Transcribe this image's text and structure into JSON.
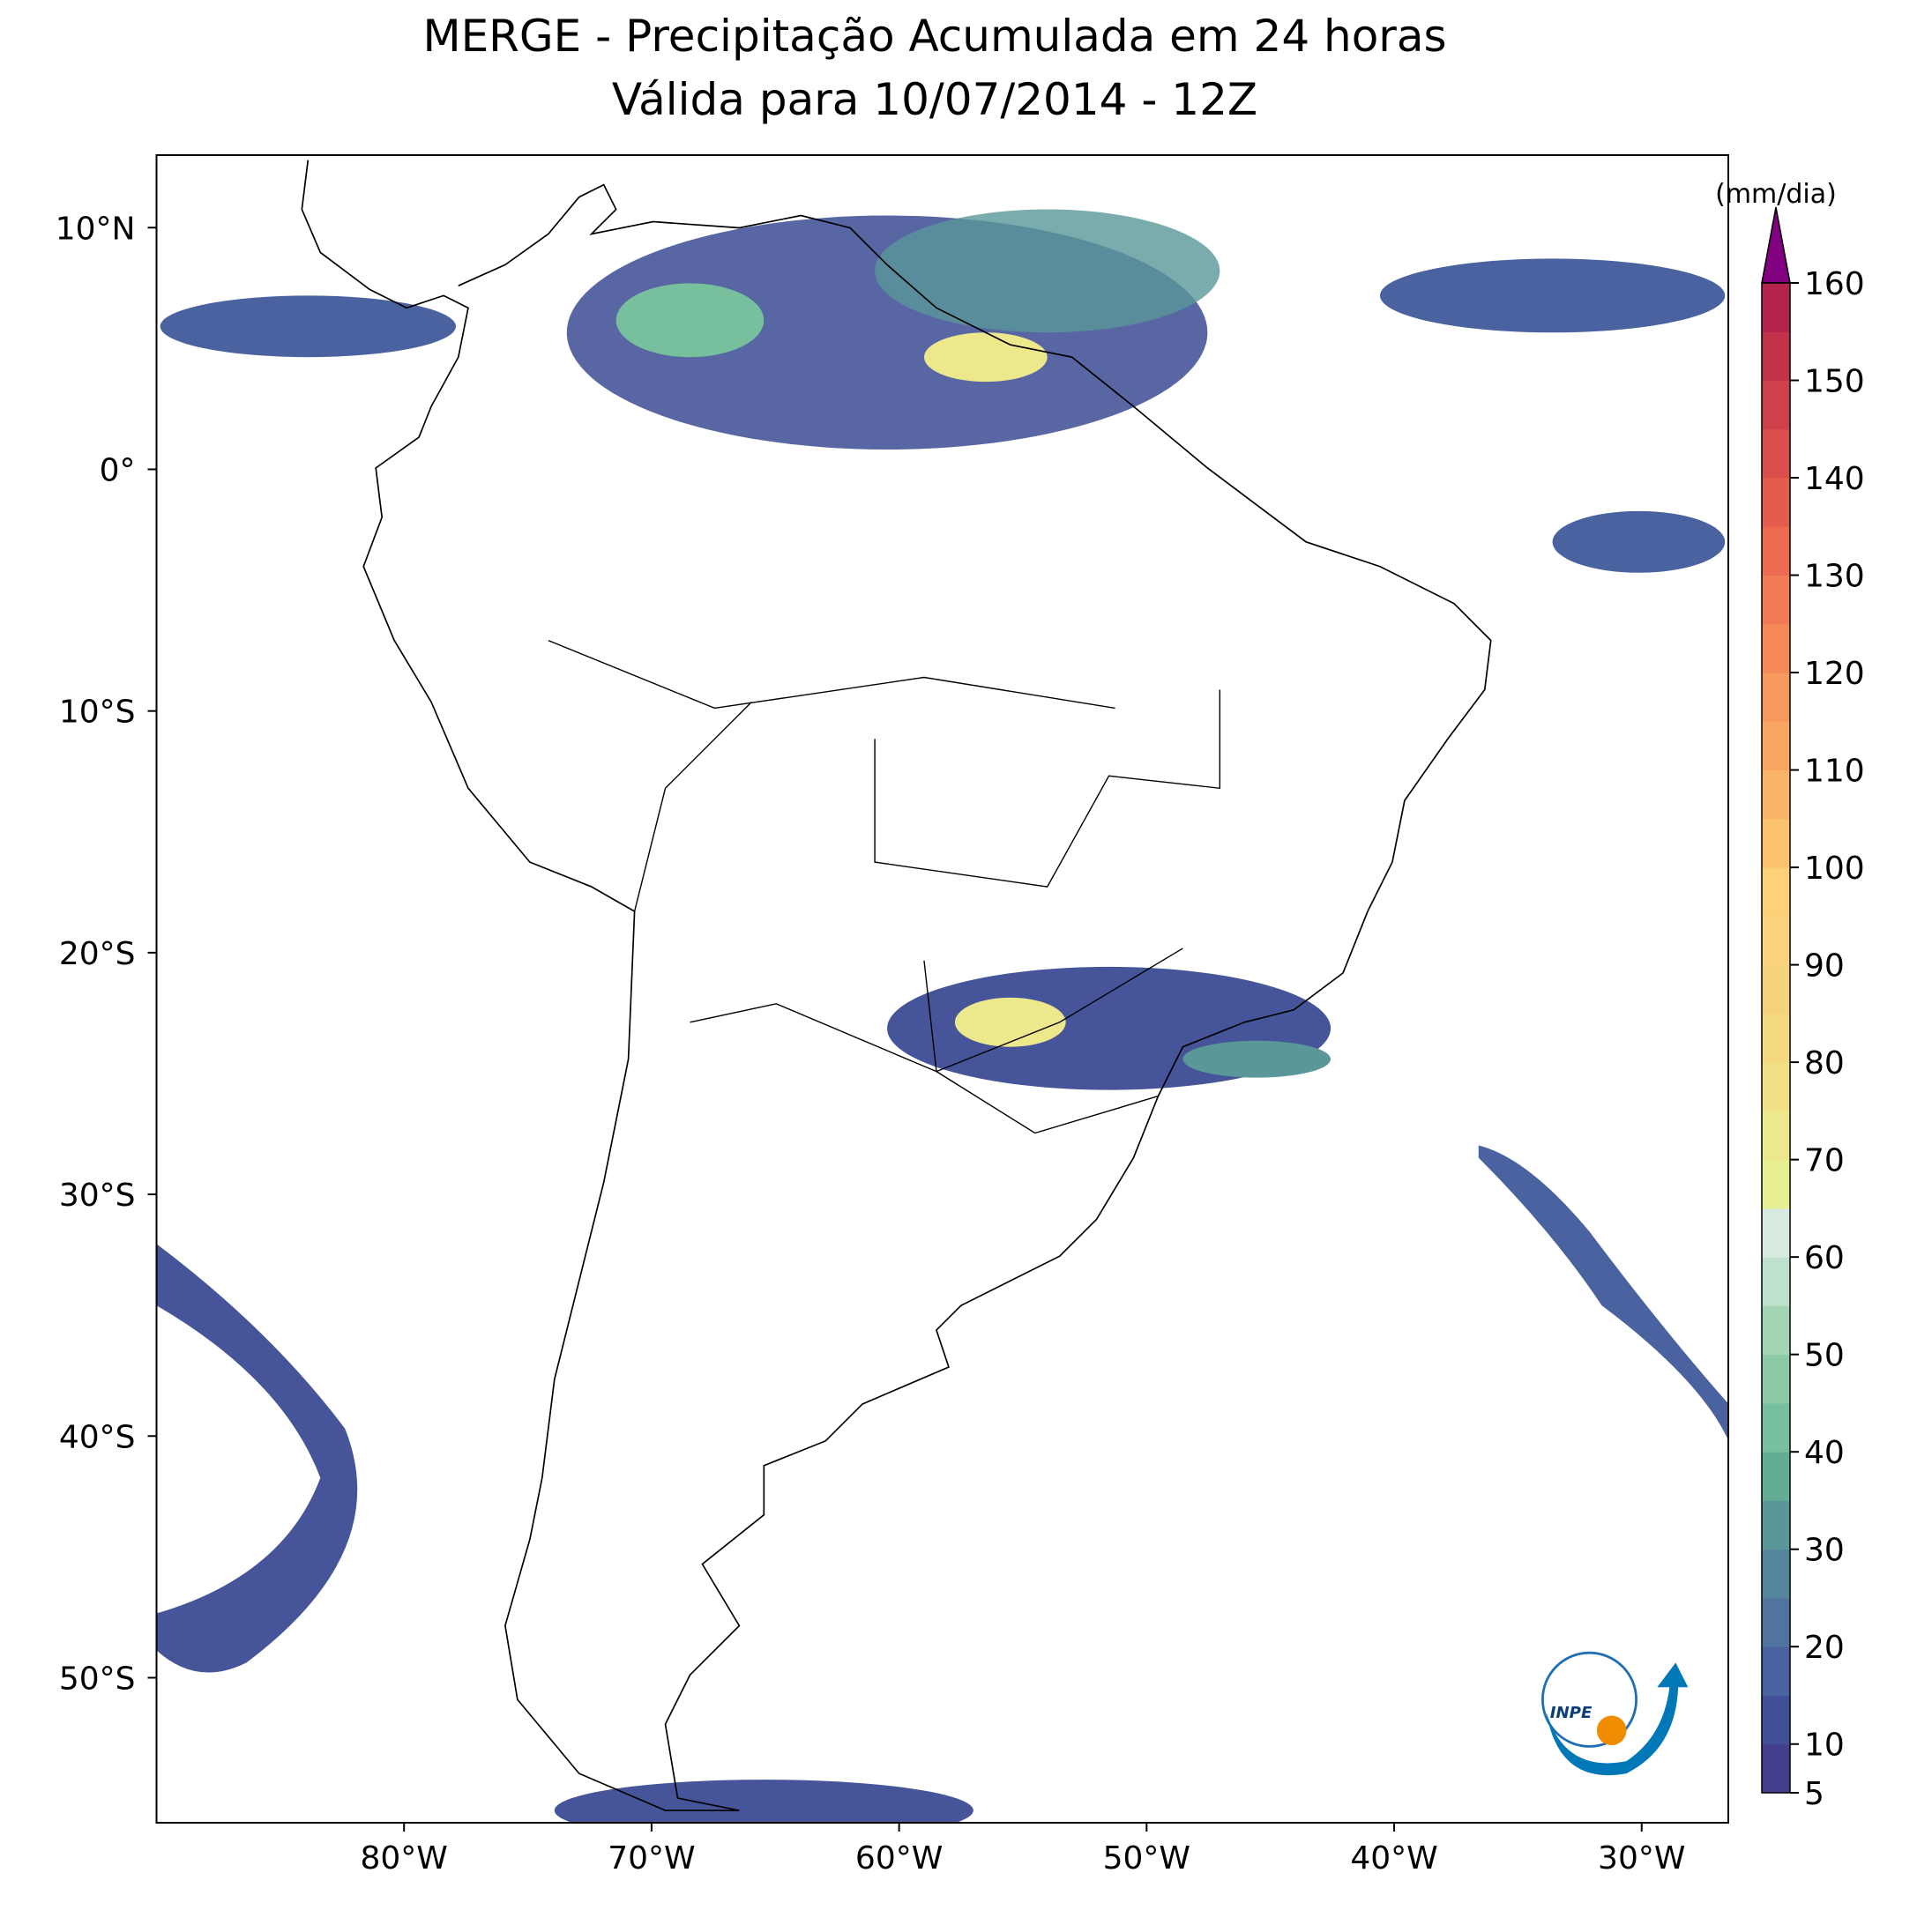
{
  "chart_data": {
    "type": "map",
    "title": "MERGE - Precipitação Acumulada em 24 horas",
    "subtitle": "Válida para 10/07/2014 - 12Z",
    "xlim": [
      -90,
      -26.5
    ],
    "ylim": [
      -56,
      13
    ],
    "xticks": [
      {
        "value": -80,
        "label": "80°W"
      },
      {
        "value": -70,
        "label": "70°W"
      },
      {
        "value": -60,
        "label": "60°W"
      },
      {
        "value": -50,
        "label": "50°W"
      },
      {
        "value": -40,
        "label": "40°W"
      },
      {
        "value": -30,
        "label": "30°W"
      }
    ],
    "yticks": [
      {
        "value": 10,
        "label": "10°N"
      },
      {
        "value": 0,
        "label": "0°"
      },
      {
        "value": -10,
        "label": "10°S"
      },
      {
        "value": -20,
        "label": "20°S"
      },
      {
        "value": -30,
        "label": "30°S"
      },
      {
        "value": -40,
        "label": "40°S"
      },
      {
        "value": -50,
        "label": "50°S"
      }
    ],
    "colorbar": {
      "label": "(mm/dia)",
      "lim": [
        5,
        160
      ],
      "ticks": [
        5,
        10,
        20,
        30,
        40,
        50,
        60,
        70,
        80,
        90,
        100,
        110,
        120,
        130,
        140,
        150,
        160
      ],
      "levels": [
        5,
        10,
        15,
        20,
        25,
        30,
        35,
        40,
        45,
        50,
        55,
        60,
        65,
        70,
        75,
        80,
        85,
        90,
        95,
        100,
        105,
        110,
        115,
        120,
        125,
        130,
        135,
        140,
        145,
        150,
        155,
        160
      ],
      "colors": [
        "#433f8d",
        "#42509a",
        "#4a62a0",
        "#51739f",
        "#54859c",
        "#5a9799",
        "#63ad97",
        "#78bf9d",
        "#8ccaa7",
        "#a3d5b5",
        "#bde1cc",
        "#d6eadf",
        "#e8ef92",
        "#ede88b",
        "#f1e086",
        "#f4d97f",
        "#f7d27c",
        "#fad47c",
        "#fdd07a",
        "#fcc36f",
        "#fab468",
        "#f9a662",
        "#f7985c",
        "#f58958",
        "#f27a54",
        "#ec6a4f",
        "#e45d4c",
        "#da4f4b",
        "#cf414a",
        "#c23349",
        "#b4244c"
      ],
      "extend_color": "#800080"
    }
  },
  "logo": {
    "text": "INPE"
  }
}
